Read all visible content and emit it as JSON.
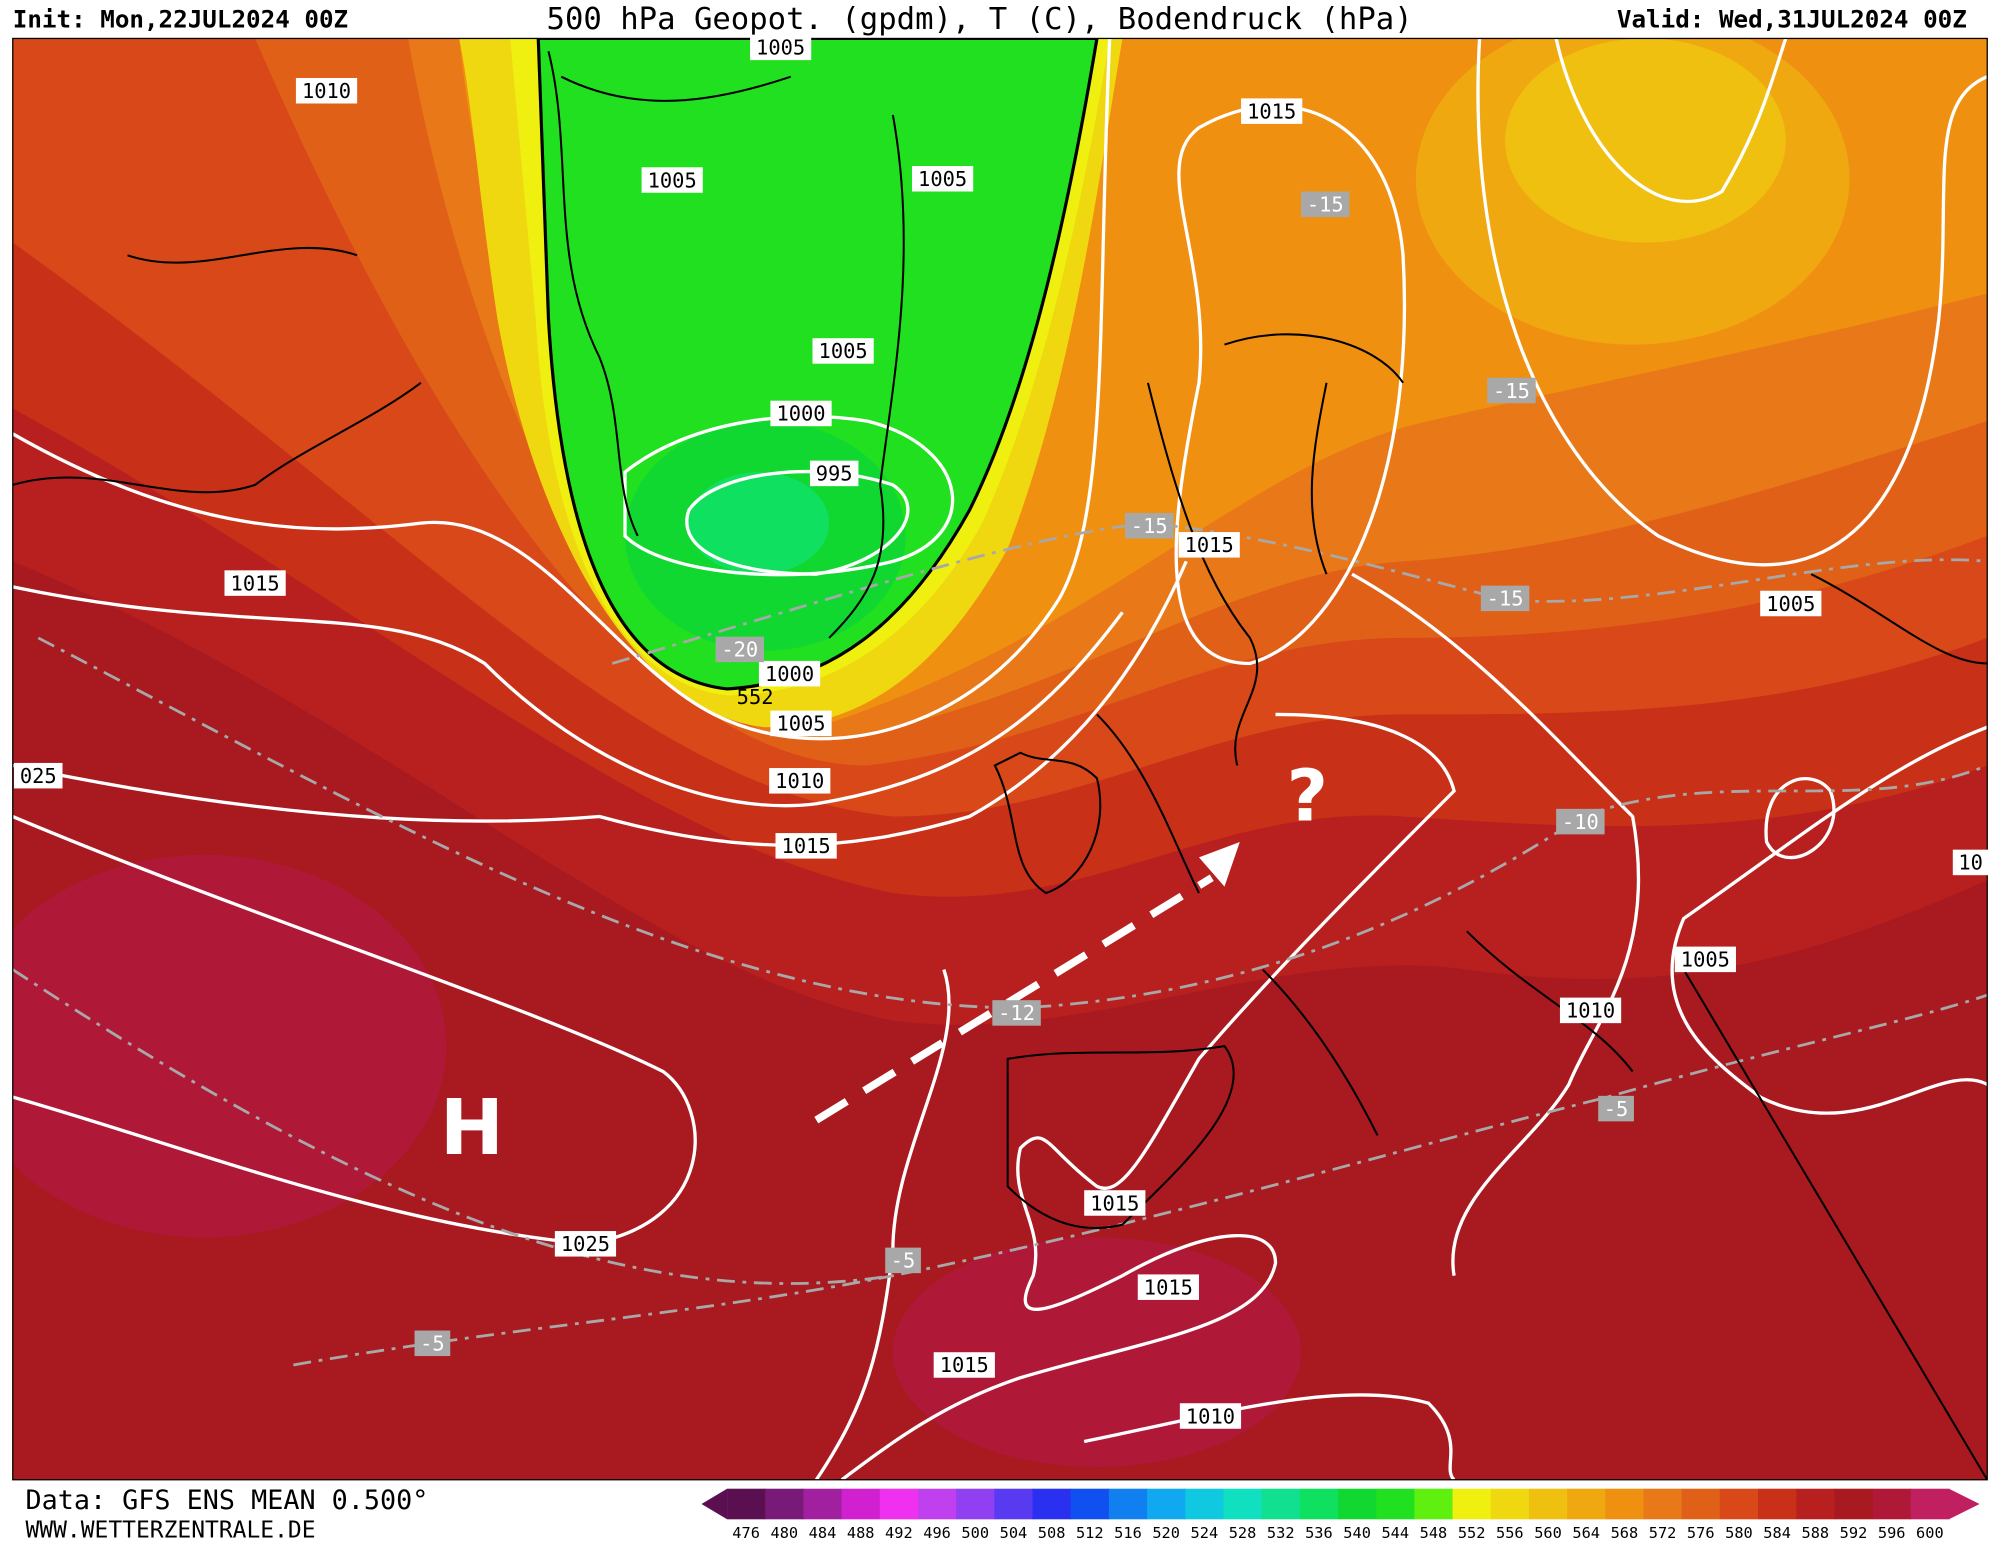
{
  "header": {
    "init": "Init: Mon,22JUL2024 00Z",
    "title": "500 hPa Geopot. (gpdm), T (C), Bodendruck (hPa)",
    "valid": "Valid: Wed,31JUL2024 00Z"
  },
  "footer": {
    "data": "Data: GFS ENS MEAN 0.500°",
    "site": "WWW.WETTERZENTRALE.DE"
  },
  "colorbar": {
    "levels": [
      476,
      480,
      484,
      488,
      492,
      496,
      500,
      504,
      508,
      512,
      516,
      520,
      524,
      528,
      532,
      536,
      540,
      544,
      548,
      552,
      556,
      560,
      564,
      568,
      572,
      576,
      580,
      584,
      588,
      592,
      596,
      600
    ],
    "colors": [
      "#5a1050",
      "#7a1a78",
      "#a020a0",
      "#d020d0",
      "#f030f0",
      "#c040f0",
      "#9040f0",
      "#5a3af0",
      "#2a30f0",
      "#1050f0",
      "#1080f0",
      "#10a8f0",
      "#10c8e0",
      "#10e0c0",
      "#10e090",
      "#10e060",
      "#10d830",
      "#20e020",
      "#60f010",
      "#f0f010",
      "#f0d810",
      "#f0c010",
      "#f0a810",
      "#f09010",
      "#e87818",
      "#e06018",
      "#d84818",
      "#c83018",
      "#b82020",
      "#a81a20",
      "#b01838",
      "#c02060"
    ]
  },
  "map": {
    "isobar_labels": [
      "1010",
      "1005",
      "1005",
      "1005",
      "1015",
      "1005",
      "1000",
      "995",
      "1015",
      "1015",
      "1005",
      "1000",
      "1005",
      "1010",
      "1015",
      "025",
      "1005",
      "1010",
      "1015",
      "1025",
      "1015",
      "1015",
      "1010",
      "10"
    ],
    "temperature_labels": [
      "-15",
      "-15",
      "-15",
      "-15",
      "-20",
      "-10",
      "-12",
      "-5",
      "-5",
      "-5"
    ],
    "pressure_system": "H",
    "annotation": "?",
    "height_label": "552"
  }
}
